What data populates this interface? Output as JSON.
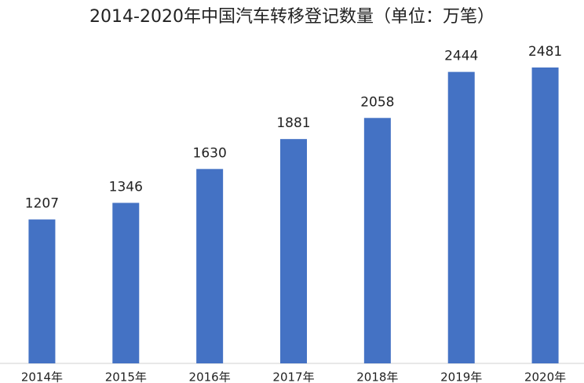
{
  "chart_data": {
    "type": "bar",
    "title": "2014-2020年中国汽车转移登记数量（单位：万笔）",
    "categories": [
      "2014年",
      "2015年",
      "2016年",
      "2017年",
      "2018年",
      "2019年",
      "2020年"
    ],
    "values": [
      1207,
      1346,
      1630,
      1881,
      2058,
      2444,
      2481
    ],
    "color": "#4472c4"
  }
}
